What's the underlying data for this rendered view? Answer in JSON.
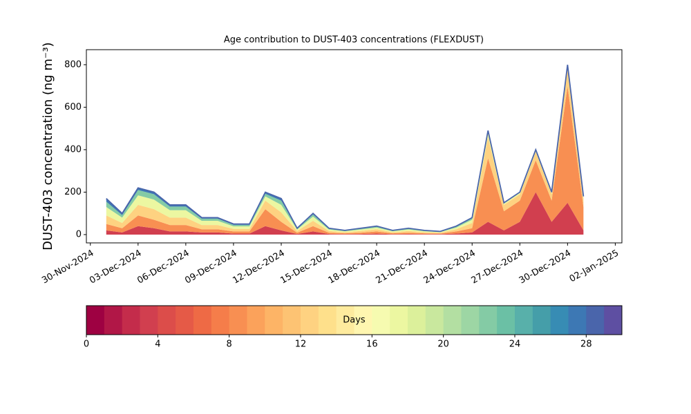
{
  "chart_data": {
    "type": "stacked_area",
    "title": "Age contribution to DUST-403 concentrations (FLEXDUST)",
    "ylabel": "DUST-403 concentration (ng m⁻³)",
    "x": [
      "2024-12-01",
      "2024-12-02",
      "2024-12-03",
      "2024-12-04",
      "2024-12-05",
      "2024-12-06",
      "2024-12-07",
      "2024-12-08",
      "2024-12-09",
      "2024-12-10",
      "2024-12-11",
      "2024-12-12",
      "2024-12-13",
      "2024-12-14",
      "2024-12-15",
      "2024-12-16",
      "2024-12-17",
      "2024-12-18",
      "2024-12-19",
      "2024-12-20",
      "2024-12-21",
      "2024-12-22",
      "2024-12-23",
      "2024-12-24",
      "2024-12-25",
      "2024-12-26",
      "2024-12-27",
      "2024-12-28",
      "2024-12-29",
      "2024-12-30",
      "2024-12-31"
    ],
    "series": [
      {
        "color": "#d13f4f",
        "values": [
          20,
          10,
          40,
          30,
          15,
          15,
          10,
          10,
          5,
          5,
          40,
          20,
          3,
          15,
          3,
          2,
          3,
          5,
          2,
          3,
          2,
          2,
          5,
          10,
          60,
          20,
          60,
          200,
          60,
          150,
          20
        ]
      },
      {
        "color": "#f88f52",
        "values": [
          30,
          20,
          50,
          40,
          30,
          30,
          15,
          15,
          10,
          10,
          80,
          40,
          6,
          25,
          6,
          4,
          6,
          10,
          4,
          6,
          4,
          3,
          10,
          20,
          300,
          90,
          100,
          150,
          100,
          550,
          110
        ]
      },
      {
        "color": "#fed281",
        "values": [
          40,
          25,
          50,
          50,
          35,
          35,
          20,
          20,
          12,
          12,
          40,
          45,
          8,
          25,
          8,
          5,
          8,
          10,
          5,
          8,
          5,
          4,
          10,
          25,
          100,
          30,
          30,
          40,
          30,
          80,
          40
        ]
      },
      {
        "color": "#ecf7a1",
        "values": [
          40,
          25,
          45,
          45,
          35,
          35,
          20,
          20,
          12,
          12,
          20,
          35,
          7,
          20,
          7,
          5,
          7,
          8,
          5,
          7,
          5,
          3,
          8,
          15,
          20,
          7,
          7,
          7,
          7,
          15,
          7
        ]
      },
      {
        "color": "#84cba5",
        "values": [
          25,
          12,
          25,
          25,
          17,
          17,
          10,
          10,
          7,
          7,
          12,
          20,
          4,
          10,
          4,
          3,
          4,
          5,
          3,
          4,
          3,
          2,
          5,
          7,
          7,
          2,
          2,
          2,
          2,
          4,
          2
        ]
      },
      {
        "color": "#3d78b4",
        "values": [
          15,
          8,
          10,
          10,
          8,
          8,
          5,
          5,
          4,
          4,
          8,
          10,
          2,
          5,
          2,
          1,
          2,
          2,
          1,
          2,
          1,
          1,
          2,
          3,
          3,
          1,
          1,
          1,
          1,
          1,
          1
        ]
      }
    ],
    "line_color": "#4a65ab",
    "xlim": [
      "2024-11-29T18:00",
      "2025-01-02T10:00"
    ],
    "xticks": [
      {
        "value": "2024-11-30",
        "label": "30-Nov-2024"
      },
      {
        "value": "2024-12-03",
        "label": "03-Dec-2024"
      },
      {
        "value": "2024-12-06",
        "label": "06-Dec-2024"
      },
      {
        "value": "2024-12-09",
        "label": "09-Dec-2024"
      },
      {
        "value": "2024-12-12",
        "label": "12-Dec-2024"
      },
      {
        "value": "2024-12-15",
        "label": "15-Dec-2024"
      },
      {
        "value": "2024-12-18",
        "label": "18-Dec-2024"
      },
      {
        "value": "2024-12-21",
        "label": "21-Dec-2024"
      },
      {
        "value": "2024-12-24",
        "label": "24-Dec-2024"
      },
      {
        "value": "2024-12-27",
        "label": "27-Dec-2024"
      },
      {
        "value": "2024-12-30",
        "label": "30-Dec-2024"
      },
      {
        "value": "2025-01-02",
        "label": "02-Jan-2025"
      }
    ],
    "ylim": [
      -39,
      871
    ],
    "yticks": [
      0,
      200,
      400,
      600,
      800
    ],
    "colorbar": {
      "label": "Days",
      "xlim": [
        0,
        30
      ],
      "xticks": [
        0,
        4,
        8,
        12,
        16,
        20,
        24,
        28
      ],
      "colors": [
        "#9e0142",
        "#b11747",
        "#c42c4b",
        "#d13f4f",
        "#dc4d4a",
        "#e55a47",
        "#ee6a45",
        "#f57d4a",
        "#f88f52",
        "#fba25b",
        "#fdb466",
        "#fdc373",
        "#fed281",
        "#fee08b",
        "#feeb9e",
        "#fff6b0",
        "#f6fbb0",
        "#ecf7a1",
        "#dcf09b",
        "#c9e89e",
        "#b3dfa2",
        "#9dd6a4",
        "#84cba5",
        "#6bc0a5",
        "#58b0aa",
        "#459ea9",
        "#378cb4",
        "#3d78b4",
        "#4a65ab",
        "#5e4fa2"
      ]
    }
  }
}
